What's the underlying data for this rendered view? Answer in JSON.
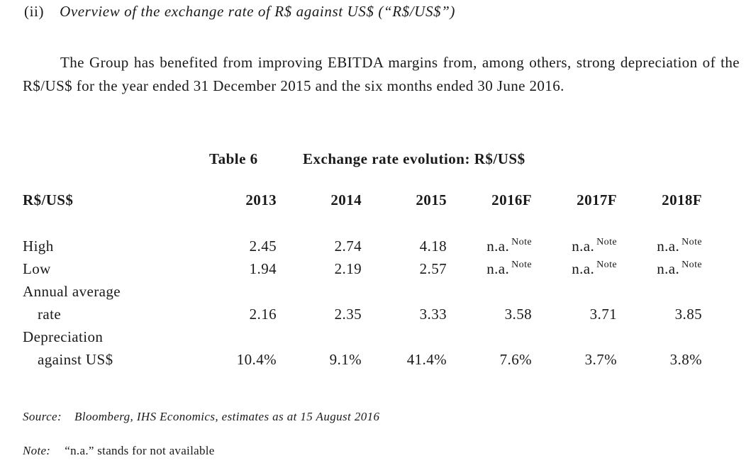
{
  "section": {
    "number": "(ii)",
    "title": "Overview of the exchange rate of R$ against US$ (“R$/US$”)"
  },
  "paragraph": "The Group has benefited from improving EBITDA margins from, among others, strong depreciation of the R$/US$ for the year ended 31 December 2015 and the six months ended 30 June 2016.",
  "table": {
    "number": "Table 6",
    "title": "Exchange rate evolution: R$/US$",
    "header": [
      "R$/US$",
      "2013",
      "2014",
      "2015",
      "2016F",
      "2017F",
      "2018F"
    ],
    "rows": {
      "high": {
        "label": "High",
        "values": [
          "2.45",
          "2.74",
          "4.18",
          "n.a.",
          "n.a.",
          "n.a."
        ]
      },
      "low": {
        "label": "Low",
        "values": [
          "1.94",
          "2.19",
          "2.57",
          "n.a.",
          "n.a.",
          "n.a."
        ]
      },
      "avg": {
        "label1": "Annual average",
        "label2": "rate",
        "values": [
          "2.16",
          "2.35",
          "3.33",
          "3.58",
          "3.71",
          "3.85"
        ]
      },
      "dep": {
        "label1": "Depreciation",
        "label2": "against US$",
        "values": [
          "10.4%",
          "9.1%",
          "41.4%",
          "7.6%",
          "3.7%",
          "3.8%"
        ]
      }
    },
    "note_marker": "Note"
  },
  "source": {
    "label": "Source:",
    "text": "Bloomberg, IHS Economics, estimates as at 15 August 2016"
  },
  "note": {
    "label": "Note:",
    "text": "“n.a.” stands for not available"
  }
}
